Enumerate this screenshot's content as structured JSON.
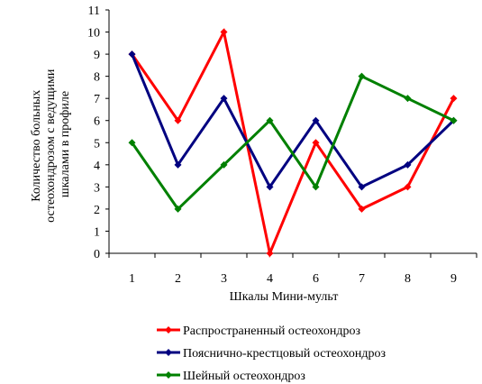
{
  "chart_data": {
    "type": "line",
    "categories": [
      "1",
      "2",
      "3",
      "4",
      "6",
      "7",
      "8",
      "9"
    ],
    "xlabel": "Шкалы Мини-мульт",
    "ylabel": [
      "Количество больных",
      "остеохондрозом с ведущими",
      "шкалами в профиле"
    ],
    "ylim": [
      0,
      11
    ],
    "yticks": [
      0,
      1,
      2,
      3,
      4,
      5,
      6,
      7,
      8,
      9,
      10,
      11
    ],
    "grid": false,
    "legend_position": "bottom",
    "series": [
      {
        "name": "Распространенный остеохондроз",
        "color": "#ff0000",
        "values": [
          9,
          6,
          10,
          0,
          5,
          2,
          3,
          7
        ]
      },
      {
        "name": "Пояснично-крестцовый остеохондроз",
        "color": "#000080",
        "values": [
          9,
          4,
          7,
          3,
          6,
          3,
          4,
          6
        ]
      },
      {
        "name": "Шейный остеохондроз",
        "color": "#008000",
        "values": [
          5,
          2,
          4,
          6,
          3,
          8,
          7,
          6
        ]
      }
    ]
  }
}
